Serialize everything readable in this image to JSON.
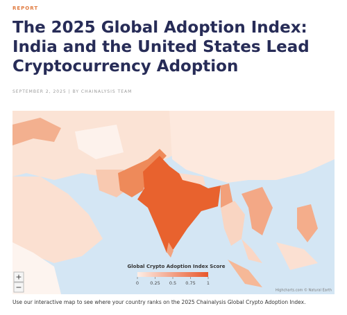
{
  "header": {
    "kicker": "REPORT",
    "title_lines": [
      "The 2025 Global Adoption Index:",
      "India and the United States Lead",
      "Cryptocurrency Adoption"
    ],
    "byline": "SEPTEMBER 2, 2025 | BY CHAINALYSIS TEAM"
  },
  "map": {
    "legend": {
      "title": "Global Crypto Adoption Index Score",
      "range": [
        0,
        1
      ],
      "ticks": [
        0,
        0.25,
        0.5,
        0.75,
        1
      ]
    },
    "zoom_in": "+",
    "zoom_out": "−",
    "credit": "Highcharts.com © Natural Earth"
  },
  "caption": "Use our interactive map to see where your country ranks on the 2025 Chainalysis Global Crypto Adoption Index."
}
